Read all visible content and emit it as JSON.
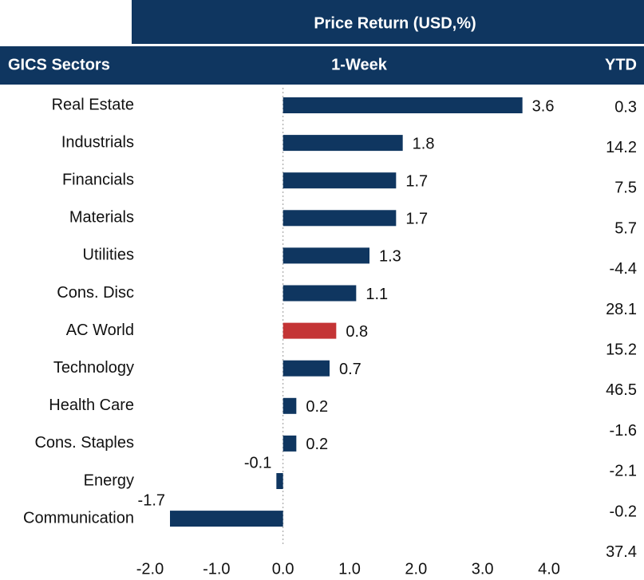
{
  "chart_data": {
    "type": "bar",
    "orientation": "horizontal",
    "title": "Price Return (USD,%)",
    "category_header": "GICS Sectors",
    "value_header": "1-Week",
    "extra_header": "YTD",
    "categories": [
      "Real Estate",
      "Industrials",
      "Financials",
      "Materials",
      "Utilities",
      "Cons. Disc",
      "AC World",
      "Technology",
      "Health Care",
      "Cons. Staples",
      "Energy",
      "Communication"
    ],
    "values": [
      3.6,
      1.8,
      1.7,
      1.7,
      1.3,
      1.1,
      0.8,
      0.7,
      0.2,
      0.2,
      -0.1,
      -1.7
    ],
    "extra_values": [
      0.3,
      14.2,
      7.5,
      5.7,
      -4.4,
      28.1,
      15.2,
      46.5,
      -1.6,
      -2.1,
      -0.2,
      37.4
    ],
    "colors": [
      "#0f3660",
      "#0f3660",
      "#0f3660",
      "#0f3660",
      "#0f3660",
      "#0f3660",
      "#c43435",
      "#0f3660",
      "#0f3660",
      "#0f3660",
      "#0f3660",
      "#0f3660"
    ],
    "header_color": "#0f3660",
    "xlim": [
      -2,
      4
    ],
    "xticks": [
      {
        "value": -2,
        "label": "-2.0"
      },
      {
        "value": -1,
        "label": "-1.0"
      },
      {
        "value": 0,
        "label": "0.0"
      },
      {
        "value": 1,
        "label": "1.0"
      },
      {
        "value": 2,
        "label": "2.0"
      },
      {
        "value": 3,
        "label": "3.0"
      },
      {
        "value": 4,
        "label": "4.0"
      }
    ]
  }
}
